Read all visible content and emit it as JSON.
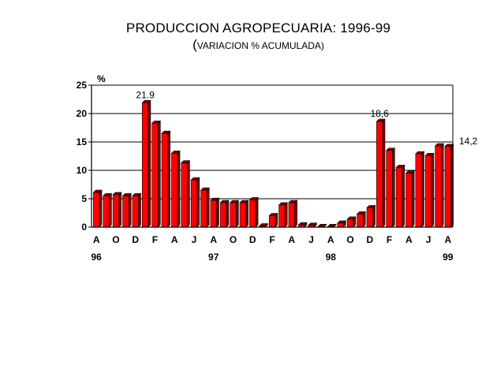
{
  "chart_data": {
    "type": "bar",
    "title": "PRODUCCION AGROPECUARIA: 1996-99",
    "subtitle_open": "(",
    "subtitle_text": "VARIACION % ACUMULADA)",
    "ylabel": "%",
    "ylim": [
      0,
      25
    ],
    "yticks": [
      0,
      5,
      10,
      15,
      20,
      25
    ],
    "grid": true,
    "bar_color": "#ff0000",
    "bar_dark": "#7a0000",
    "month_labels": [
      {
        "index": 0,
        "text": "A"
      },
      {
        "index": 2,
        "text": "O"
      },
      {
        "index": 4,
        "text": "D"
      },
      {
        "index": 6,
        "text": "F"
      },
      {
        "index": 8,
        "text": "A"
      },
      {
        "index": 10,
        "text": "J"
      },
      {
        "index": 12,
        "text": "A"
      },
      {
        "index": 14,
        "text": "O"
      },
      {
        "index": 16,
        "text": "D"
      },
      {
        "index": 18,
        "text": "F"
      },
      {
        "index": 20,
        "text": "A"
      },
      {
        "index": 22,
        "text": "J"
      },
      {
        "index": 24,
        "text": "A"
      },
      {
        "index": 26,
        "text": "O"
      },
      {
        "index": 28,
        "text": "D"
      },
      {
        "index": 30,
        "text": "F"
      },
      {
        "index": 32,
        "text": "A"
      },
      {
        "index": 34,
        "text": "J"
      },
      {
        "index": 36,
        "text": "A"
      }
    ],
    "year_labels": [
      {
        "index": 0,
        "text": "96"
      },
      {
        "index": 12,
        "text": "97"
      },
      {
        "index": 24,
        "text": "98"
      },
      {
        "index": 36,
        "text": "99"
      }
    ],
    "values": [
      6.1,
      5.5,
      5.7,
      5.5,
      5.5,
      21.9,
      18.3,
      16.5,
      13.0,
      11.3,
      8.3,
      6.5,
      4.7,
      4.3,
      4.3,
      4.3,
      4.8,
      0.2,
      2.0,
      3.9,
      4.3,
      0.4,
      0.3,
      0.1,
      0.1,
      0.7,
      1.4,
      2.3,
      3.4,
      18.6,
      13.5,
      10.5,
      9.5,
      12.9,
      12.6,
      14.3,
      14.2
    ],
    "annotations": [
      {
        "index": 5,
        "text": "21.9",
        "position": "above"
      },
      {
        "index": 29,
        "text": "18,6",
        "position": "above"
      },
      {
        "index": 36,
        "text": "14,2",
        "position": "right"
      }
    ]
  }
}
